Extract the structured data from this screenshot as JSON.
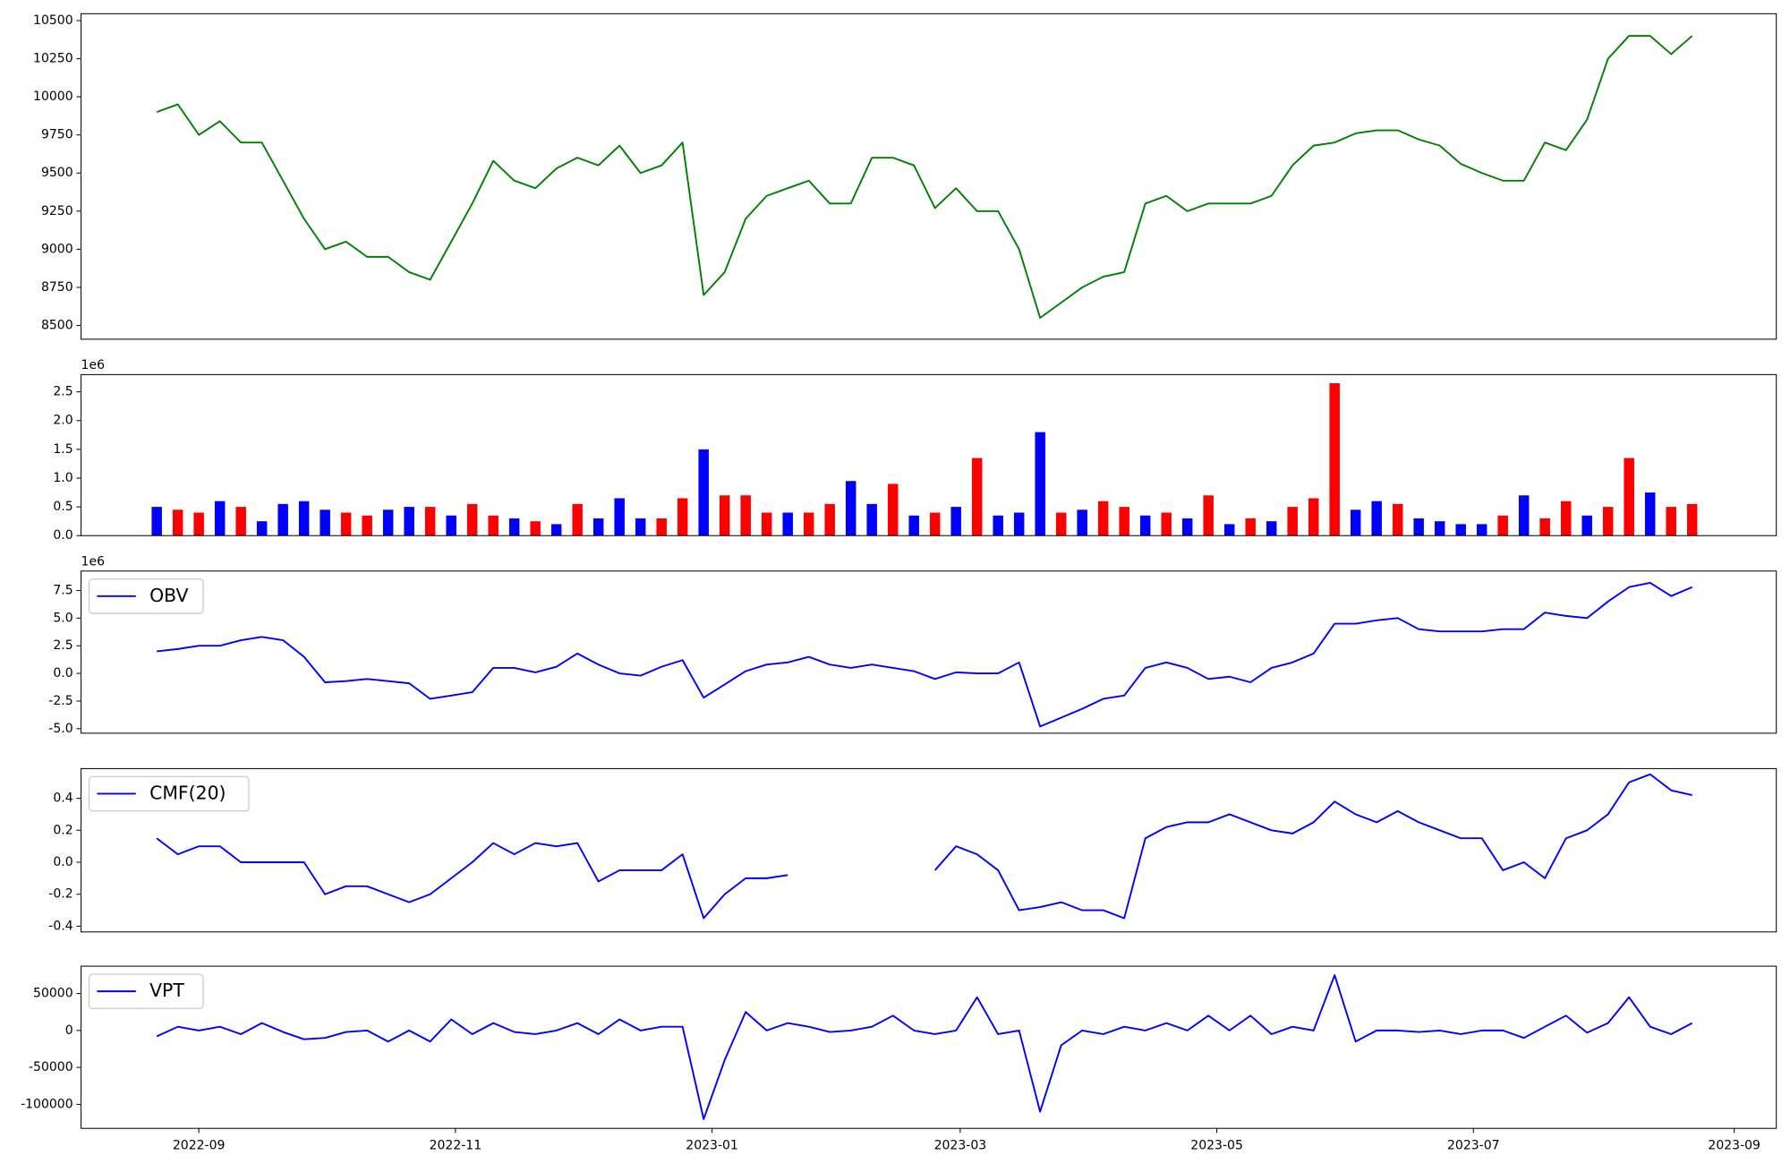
{
  "chart_data": [
    {
      "type": "line",
      "color": "#008000",
      "values": [
        9900,
        9950,
        9750,
        9840,
        9700,
        9700,
        9450,
        9200,
        9000,
        9050,
        8950,
        8950,
        8850,
        8800,
        9050,
        9300,
        9580,
        9450,
        9400,
        9530,
        9600,
        9550,
        9680,
        9500,
        9550,
        9700,
        8700,
        8850,
        9200,
        9350,
        9400,
        9450,
        9300,
        9300,
        9600,
        9600,
        9550,
        9270,
        9400,
        9250,
        9250,
        9000,
        8550,
        8650,
        8750,
        8820,
        8850,
        9300,
        9350,
        9250,
        9300,
        9300,
        9300,
        9350,
        9550,
        9680,
        9700,
        9760,
        9780,
        9780,
        9720,
        9680,
        9560,
        9500,
        9450,
        9450,
        9700,
        9650,
        9850,
        10250,
        10400,
        10400,
        10280,
        10400
      ],
      "ylim": [
        8410,
        10545
      ],
      "yticks": [
        8500,
        8750,
        9000,
        9250,
        9500,
        9750,
        10000,
        10250,
        10500
      ]
    },
    {
      "type": "bar",
      "offset_label": "1e6",
      "values": [
        0.5,
        0.45,
        0.4,
        0.6,
        0.5,
        0.25,
        0.55,
        0.6,
        0.45,
        0.4,
        0.35,
        0.45,
        0.5,
        0.5,
        0.35,
        0.55,
        0.35,
        0.3,
        0.25,
        0.2,
        0.55,
        0.3,
        0.65,
        0.3,
        0.3,
        0.65,
        1.5,
        0.7,
        0.7,
        0.4,
        0.4,
        0.4,
        0.55,
        0.95,
        0.55,
        0.9,
        0.35,
        0.4,
        0.5,
        1.35,
        0.35,
        0.4,
        1.8,
        0.4,
        0.45,
        0.6,
        0.5,
        0.35,
        0.4,
        0.3,
        0.7,
        0.2,
        0.3,
        0.25,
        0.5,
        0.65,
        2.65,
        0.45,
        0.6,
        0.55,
        0.3,
        0.25,
        0.2,
        0.2,
        0.35,
        0.7,
        0.3,
        0.6,
        0.35,
        0.5,
        1.35,
        0.75,
        0.5,
        0.55
      ],
      "colors": [
        "#0000ff",
        "#ff0000",
        "#ff0000",
        "#0000ff",
        "#ff0000",
        "#0000ff",
        "#0000ff",
        "#0000ff",
        "#0000ff",
        "#ff0000",
        "#ff0000",
        "#0000ff",
        "#0000ff",
        "#ff0000",
        "#0000ff",
        "#ff0000",
        "#ff0000",
        "#0000ff",
        "#ff0000",
        "#0000ff",
        "#ff0000",
        "#0000ff",
        "#0000ff",
        "#0000ff",
        "#ff0000",
        "#ff0000",
        "#0000ff",
        "#ff0000",
        "#ff0000",
        "#ff0000",
        "#0000ff",
        "#ff0000",
        "#ff0000",
        "#0000ff",
        "#0000ff",
        "#ff0000",
        "#0000ff",
        "#ff0000",
        "#0000ff",
        "#ff0000",
        "#0000ff",
        "#0000ff",
        "#0000ff",
        "#ff0000",
        "#0000ff",
        "#ff0000",
        "#ff0000",
        "#0000ff",
        "#ff0000",
        "#0000ff",
        "#ff0000",
        "#0000ff",
        "#ff0000",
        "#0000ff",
        "#ff0000",
        "#ff0000",
        "#ff0000",
        "#0000ff",
        "#0000ff",
        "#ff0000",
        "#0000ff",
        "#0000ff",
        "#0000ff",
        "#0000ff",
        "#ff0000",
        "#0000ff",
        "#ff0000",
        "#ff0000",
        "#0000ff",
        "#ff0000",
        "#ff0000",
        "#0000ff",
        "#ff0000",
        "#ff0000"
      ],
      "ylim": [
        0,
        2.8
      ],
      "yticks": [
        {
          "value": 0,
          "label": "0.0"
        },
        0.5,
        {
          "value": 1,
          "label": "1.0"
        },
        1.5,
        {
          "value": 2,
          "label": "2.0"
        },
        2.5
      ]
    },
    {
      "type": "line",
      "offset_label": "1e6",
      "legend": "upper left",
      "series": [
        {
          "name": "OBV",
          "color": "#0000ff",
          "values": [
            2.0,
            2.2,
            2.5,
            2.5,
            3.0,
            3.3,
            3.0,
            1.5,
            -0.8,
            -0.7,
            -0.5,
            -0.7,
            -0.9,
            -2.3,
            -2.0,
            -1.7,
            0.5,
            0.5,
            0.1,
            0.6,
            1.8,
            0.8,
            0.0,
            -0.2,
            0.6,
            1.2,
            -2.2,
            -1.0,
            0.2,
            0.8,
            1.0,
            1.5,
            0.8,
            0.5,
            0.8,
            0.5,
            0.2,
            -0.5,
            0.1,
            0.0,
            0.0,
            1.0,
            -4.8,
            -4.0,
            -3.2,
            -2.3,
            -2.0,
            0.5,
            1.0,
            0.5,
            -0.5,
            -0.3,
            -0.8,
            0.5,
            1.0,
            1.8,
            4.5,
            4.5,
            4.8,
            5.0,
            4.0,
            3.8,
            3.8,
            3.8,
            4.0,
            4.0,
            5.5,
            5.2,
            5.0,
            6.5,
            7.8,
            8.2,
            7.0,
            7.8
          ]
        }
      ],
      "ylim": [
        -5.41,
        9.26
      ],
      "yticks": [
        {
          "value": -5,
          "label": "-5.0"
        },
        -2.5,
        {
          "value": 0,
          "label": "0.0"
        },
        2.5,
        {
          "value": 5,
          "label": "5.0"
        },
        7.5
      ]
    },
    {
      "type": "line",
      "legend": "upper left",
      "series": [
        {
          "name": "CMF(20)",
          "color": "#0000ff",
          "values": [
            0.15,
            0.05,
            0.1,
            0.1,
            0.0,
            0.0,
            0.0,
            0.0,
            -0.2,
            -0.15,
            -0.15,
            -0.2,
            -0.25,
            -0.2,
            -0.1,
            0.0,
            0.12,
            0.05,
            0.12,
            0.1,
            0.12,
            -0.12,
            -0.05,
            -0.05,
            -0.05,
            0.05,
            -0.35,
            -0.2,
            -0.1,
            -0.1,
            -0.08,
            null,
            null,
            null,
            null,
            null,
            null,
            -0.05,
            0.1,
            0.05,
            -0.05,
            -0.3,
            -0.28,
            -0.25,
            -0.3,
            -0.3,
            -0.35,
            0.15,
            0.22,
            0.25,
            0.25,
            0.3,
            0.25,
            0.2,
            0.18,
            0.25,
            0.38,
            0.3,
            0.25,
            0.32,
            0.25,
            0.2,
            0.15,
            0.15,
            -0.05,
            0.0,
            -0.1,
            0.15,
            0.2,
            0.3,
            0.5,
            0.55,
            0.45,
            0.42
          ]
        }
      ],
      "ylim": [
        -0.436,
        0.586
      ],
      "yticks": [
        -0.4,
        -0.2,
        {
          "value": 0,
          "label": "0.0"
        },
        0.2,
        0.4
      ]
    },
    {
      "type": "line",
      "legend": "upper left",
      "x": [
        19226,
        19231,
        19236,
        19241,
        19246,
        19251,
        19256,
        19261,
        19266,
        19271,
        19276,
        19281,
        19286,
        19291,
        19296,
        19301,
        19306,
        19311,
        19316,
        19321,
        19326,
        19331,
        19336,
        19341,
        19346,
        19351,
        19356,
        19361,
        19366,
        19371,
        19376,
        19381,
        19386,
        19391,
        19396,
        19401,
        19406,
        19411,
        19416,
        19421,
        19426,
        19431,
        19436,
        19441,
        19446,
        19451,
        19456,
        19461,
        19466,
        19471,
        19476,
        19481,
        19486,
        19491,
        19496,
        19501,
        19506,
        19511,
        19516,
        19521,
        19526,
        19531,
        19536,
        19541,
        19546,
        19551,
        19556,
        19561,
        19566,
        19571,
        19576,
        19581,
        19586,
        19591
      ],
      "xlim": [
        19208,
        19611
      ],
      "xticks": [
        {
          "value": 19236,
          "label": "2022-09"
        },
        {
          "value": 19297,
          "label": "2022-11"
        },
        {
          "value": 19358,
          "label": "2023-01"
        },
        {
          "value": 19417,
          "label": "2023-03"
        },
        {
          "value": 19478,
          "label": "2023-05"
        },
        {
          "value": 19539,
          "label": "2023-07"
        },
        {
          "value": 19601,
          "label": "2023-09"
        }
      ],
      "series": [
        {
          "name": "VPT",
          "color": "#0000ff",
          "values": [
            -8000,
            5000,
            0,
            5000,
            -5000,
            10000,
            -2000,
            -12000,
            -10000,
            -2000,
            0,
            -15000,
            0,
            -15000,
            15000,
            -5000,
            10000,
            -2000,
            -5000,
            0,
            10000,
            -5000,
            15000,
            0,
            5000,
            5000,
            -120000,
            -40000,
            25000,
            0,
            10000,
            5000,
            -2000,
            0,
            5000,
            20000,
            0,
            -5000,
            0,
            45000,
            -5000,
            0,
            -110000,
            -20000,
            0,
            -5000,
            5000,
            0,
            10000,
            0,
            20000,
            0,
            20000,
            -5000,
            5000,
            0,
            75000,
            -15000,
            0,
            0,
            -2000,
            0,
            -5000,
            0,
            0,
            -10000,
            5000,
            20000,
            -3000,
            10000,
            45000,
            5000,
            -5000,
            10000
          ]
        }
      ],
      "ylim": [
        -132500,
        87000
      ],
      "yticks": [
        -100000,
        -50000,
        0,
        50000
      ]
    }
  ]
}
